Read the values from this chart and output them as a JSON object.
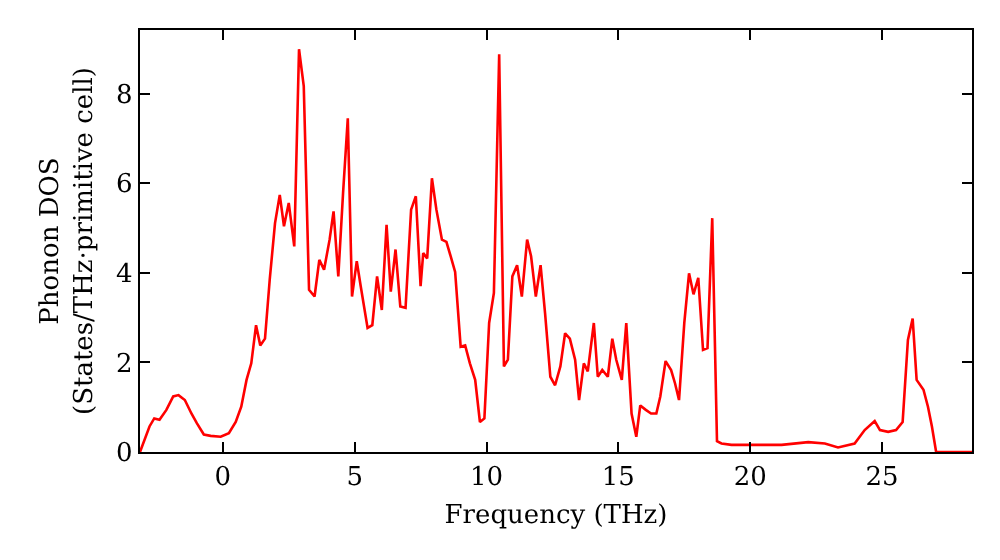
{
  "chart_data": {
    "type": "line",
    "xlabel": "Frequency (THz)",
    "ylabel": "Phonon DOS\n(States/THz·primitive cell)",
    "xlim": [
      -3.14,
      28.41
    ],
    "ylim": [
      0,
      9.42
    ],
    "xticks": [
      0,
      5,
      10,
      15,
      20,
      25
    ],
    "yticks": [
      0,
      2,
      4,
      6,
      8
    ],
    "grid": false,
    "marker": "none",
    "line_style": "solid",
    "series": [
      {
        "color": "#ff0000",
        "x": [
          -3.14,
          -2.78,
          -2.6,
          -2.4,
          -2.14,
          -1.88,
          -1.68,
          -1.44,
          -1.19,
          -0.98,
          -0.72,
          -0.46,
          -0.08,
          0.23,
          0.49,
          0.7,
          0.9,
          1.08,
          1.26,
          1.42,
          1.6,
          1.78,
          1.98,
          2.16,
          2.32,
          2.5,
          2.71,
          2.89,
          3.07,
          3.27,
          3.48,
          3.66,
          3.84,
          4.05,
          4.2,
          4.38,
          4.56,
          4.74,
          4.9,
          5.08,
          5.23,
          5.49,
          5.67,
          5.85,
          6.03,
          6.21,
          6.37,
          6.55,
          6.73,
          6.93,
          7.14,
          7.32,
          7.5,
          7.6,
          7.75,
          7.93,
          8.1,
          8.31,
          8.48,
          8.64,
          8.81,
          9.02,
          9.19,
          9.37,
          9.57,
          9.75,
          9.92,
          10.1,
          10.28,
          10.48,
          10.66,
          10.81,
          10.98,
          11.16,
          11.34,
          11.54,
          11.69,
          11.87,
          12.05,
          12.22,
          12.42,
          12.6,
          12.8,
          12.98,
          13.16,
          13.36,
          13.51,
          13.69,
          13.84,
          14.07,
          14.22,
          14.39,
          14.6,
          14.77,
          14.92,
          15.13,
          15.3,
          15.5,
          15.68,
          15.83,
          16.04,
          16.24,
          16.44,
          16.59,
          16.79,
          17.0,
          17.15,
          17.3,
          17.5,
          17.68,
          17.85,
          18.03,
          18.21,
          18.38,
          18.56,
          18.74,
          18.91,
          19.29,
          20.0,
          21.19,
          22.2,
          22.83,
          23.33,
          23.96,
          24.34,
          24.72,
          24.92,
          25.23,
          25.53,
          25.78,
          25.98,
          26.16,
          26.31,
          26.57,
          26.74,
          26.89,
          27.05,
          28.41
        ],
        "values": [
          0,
          0.57,
          0.75,
          0.72,
          0.94,
          1.24,
          1.27,
          1.16,
          0.86,
          0.64,
          0.39,
          0.36,
          0.34,
          0.42,
          0.67,
          1.01,
          1.61,
          1.98,
          2.83,
          2.38,
          2.53,
          3.85,
          5.11,
          5.74,
          5.04,
          5.56,
          4.59,
          8.99,
          8.17,
          3.62,
          3.47,
          4.29,
          4.07,
          4.74,
          5.37,
          3.92,
          5.78,
          7.45,
          3.47,
          4.26,
          3.7,
          2.77,
          2.83,
          3.92,
          3.17,
          5.07,
          3.58,
          4.52,
          3.25,
          3.22,
          5.41,
          5.71,
          3.7,
          4.44,
          4.32,
          6.11,
          5.41,
          4.74,
          4.69,
          4.37,
          4.02,
          2.35,
          2.38,
          1.98,
          1.61,
          0.67,
          0.75,
          2.88,
          3.55,
          8.88,
          1.91,
          2.06,
          3.92,
          4.17,
          3.47,
          4.74,
          4.37,
          3.47,
          4.17,
          3.1,
          1.68,
          1.49,
          1.91,
          2.65,
          2.53,
          2.06,
          1.16,
          1.98,
          1.8,
          2.88,
          1.68,
          1.83,
          1.68,
          2.53,
          2.06,
          1.61,
          2.88,
          0.86,
          0.34,
          1.04,
          0.94,
          0.86,
          0.86,
          1.24,
          2.03,
          1.83,
          1.53,
          1.16,
          2.88,
          3.99,
          3.52,
          3.89,
          2.28,
          2.32,
          5.22,
          0.24,
          0.19,
          0.16,
          0.16,
          0.16,
          0.22,
          0.19,
          0.1,
          0.19,
          0.49,
          0.69,
          0.49,
          0.45,
          0.49,
          0.67,
          2.5,
          2.98,
          1.61,
          1.39,
          1.01,
          0.57,
          0,
          0
        ]
      }
    ]
  }
}
